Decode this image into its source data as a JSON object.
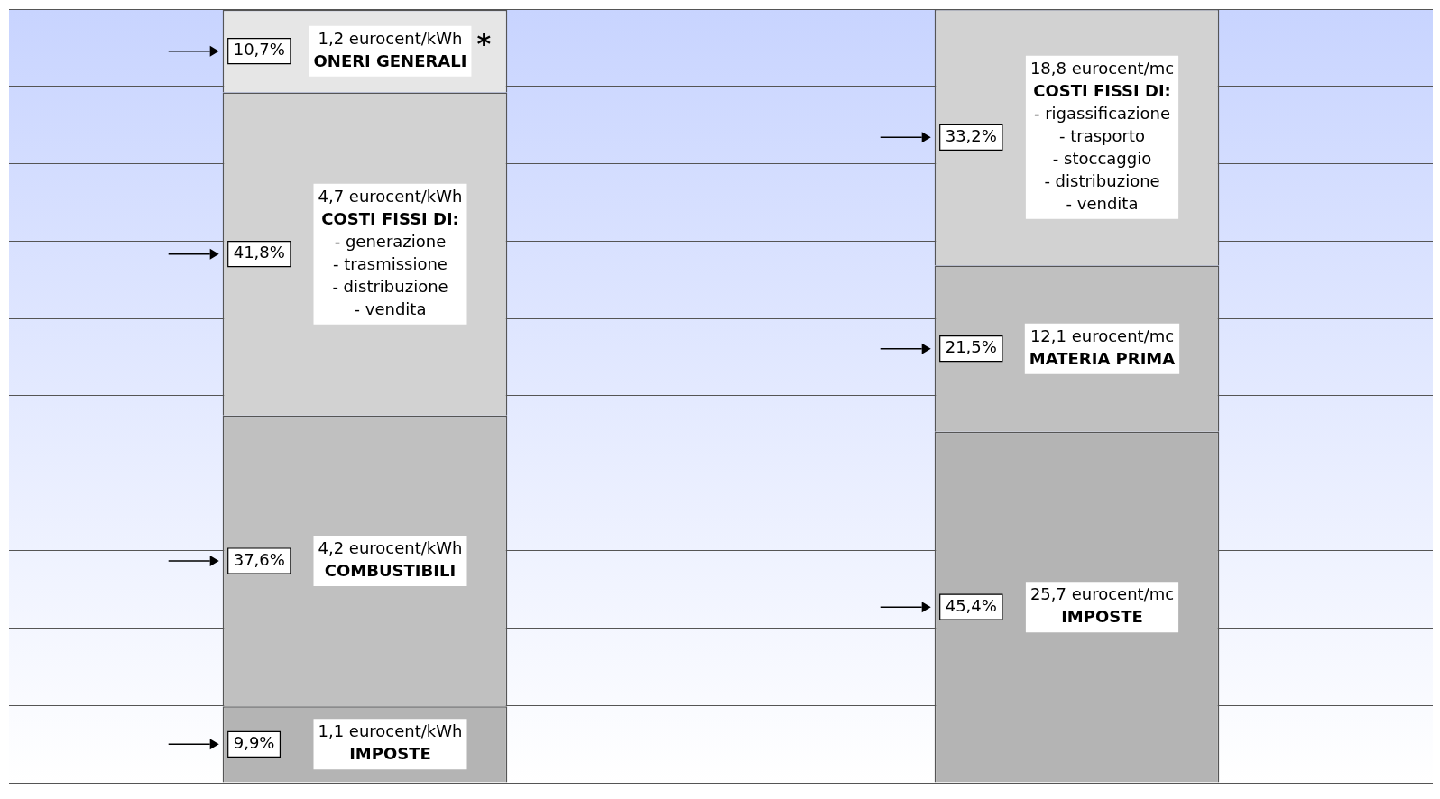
{
  "chart_data": {
    "type": "bar",
    "stacked": true,
    "categories": [
      null,
      null
    ],
    "series": [
      {
        "name": "IMPOSTE",
        "color": "#b4b4b4",
        "values": [
          9.9,
          null
        ],
        "value_labels": [
          "9,9%",
          null
        ]
      },
      {
        "name": "COMBUSTIBILI",
        "color": "#c0c0c0",
        "values": [
          37.6,
          null
        ],
        "value_labels": [
          "37,6%",
          null
        ]
      },
      {
        "name": "COSTI FISSI DI:",
        "color": "#d2d2d2",
        "values": [
          41.8,
          null
        ],
        "value_labels": [
          "41,8%",
          null
        ]
      },
      {
        "name": "ONERI GENERALI",
        "color": "#e6e6e6",
        "values": [
          10.7,
          null
        ],
        "value_labels": [
          "10,7%",
          null
        ]
      },
      {
        "name": "IMPOSTE",
        "color": "#b4b4b4",
        "values": [
          null,
          45.4
        ],
        "value_labels": [
          null,
          "45,4%"
        ]
      },
      {
        "name": "MATERIA PRIMA",
        "color": "#c0c0c0",
        "values": [
          null,
          21.5
        ],
        "value_labels": [
          null,
          "21,5%"
        ]
      },
      {
        "name": "COSTI FISSI DI:",
        "color": "#d2d2d2",
        "values": [
          null,
          33.2
        ],
        "value_labels": [
          null,
          "33,2%"
        ]
      }
    ],
    "annotations": [
      "1,1 eurocent/kWh",
      "4,2 eurocent/kWh",
      "4,7 eurocent/kWh\n- generazione\n- trasmissione\n- distribuzione\n- vendita",
      "1,2 eurocent/kWh",
      "25,7 eurocent/mc",
      "12,1 eurocent/mc",
      "18,8 eurocent/mc\n- rigassificazione\n- trasporto\n- stoccaggio\n- distribuzione\n- vendita",
      "*"
    ],
    "grid": "y",
    "tick_labels": false,
    "legend": false
  }
}
